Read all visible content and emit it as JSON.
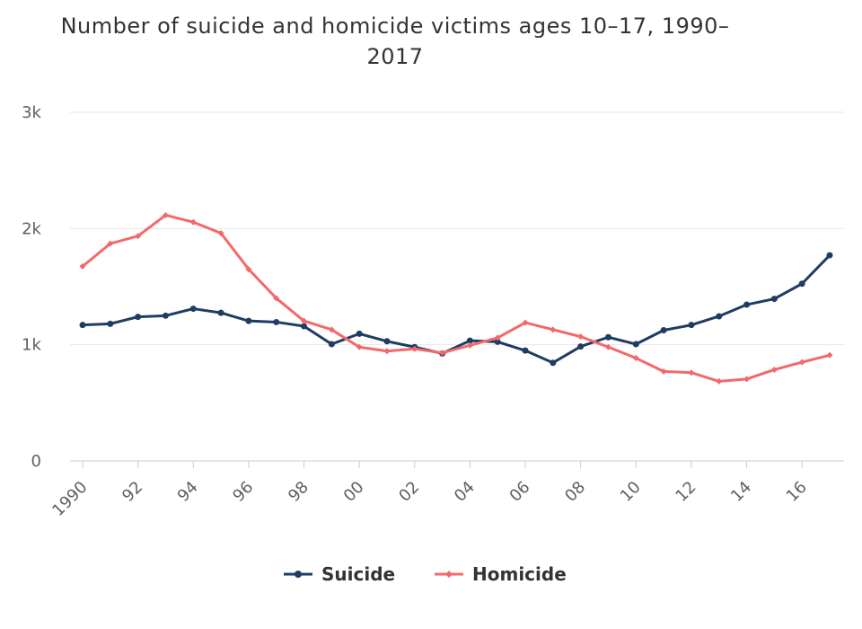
{
  "chart_data": {
    "type": "line",
    "title": "Number of suicide and homicide victims ages 10-17, 1990-2017",
    "title_lines": [
      "Number of suicide and homicide victims ages 10–17, 1990–",
      "2017"
    ],
    "xlabel": "",
    "ylabel": "",
    "x": [
      1990,
      1991,
      1992,
      1993,
      1994,
      1995,
      1996,
      1997,
      1998,
      1999,
      2000,
      2001,
      2002,
      2003,
      2004,
      2005,
      2006,
      2007,
      2008,
      2009,
      2010,
      2011,
      2012,
      2013,
      2014,
      2015,
      2016,
      2017
    ],
    "xticks": [
      {
        "year": 1990,
        "label": "1990"
      },
      {
        "year": 1992,
        "label": "92"
      },
      {
        "year": 1994,
        "label": "94"
      },
      {
        "year": 1996,
        "label": "96"
      },
      {
        "year": 1998,
        "label": "98"
      },
      {
        "year": 2000,
        "label": "00"
      },
      {
        "year": 2002,
        "label": "02"
      },
      {
        "year": 2004,
        "label": "04"
      },
      {
        "year": 2006,
        "label": "06"
      },
      {
        "year": 2008,
        "label": "08"
      },
      {
        "year": 2010,
        "label": "10"
      },
      {
        "year": 2012,
        "label": "12"
      },
      {
        "year": 2014,
        "label": "14"
      },
      {
        "year": 2016,
        "label": "16"
      }
    ],
    "yticks": [
      {
        "value": 0,
        "label": "0"
      },
      {
        "value": 1000,
        "label": "1k"
      },
      {
        "value": 2000,
        "label": "2k"
      },
      {
        "value": 3000,
        "label": "3k"
      }
    ],
    "ylim": [
      0,
      3000
    ],
    "grid": true,
    "legend_position": "bottom-center",
    "series": [
      {
        "name": "Suicide",
        "color": "#1f3d63",
        "marker": "circle",
        "values": [
          1170,
          1180,
          1240,
          1250,
          1310,
          1275,
          1205,
          1195,
          1160,
          1005,
          1095,
          1030,
          980,
          925,
          1035,
          1025,
          950,
          845,
          985,
          1065,
          1005,
          1125,
          1170,
          1245,
          1345,
          1395,
          1525,
          1770
        ]
      },
      {
        "name": "Homicide",
        "color": "#f4686a",
        "marker": "diamond",
        "values": [
          1675,
          1870,
          1935,
          2115,
          2055,
          1960,
          1650,
          1400,
          1205,
          1130,
          980,
          945,
          965,
          930,
          995,
          1060,
          1190,
          1130,
          1070,
          980,
          885,
          770,
          760,
          685,
          705,
          785,
          850,
          910
        ]
      }
    ]
  }
}
